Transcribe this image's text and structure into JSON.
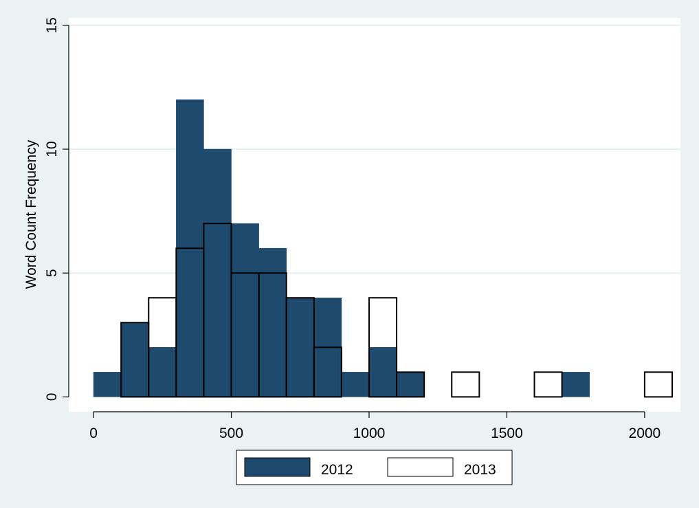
{
  "chart_data": {
    "type": "bar",
    "subtype": "overlaid-histogram",
    "title": "",
    "xlabel": "",
    "ylabel": "Word Count Frequency",
    "xlim": [
      -90,
      2130
    ],
    "ylim": [
      -0.6,
      15.3
    ],
    "bin_width": 100,
    "bin_starts": [
      0,
      100,
      200,
      300,
      400,
      500,
      600,
      700,
      800,
      900,
      1000,
      1100,
      1200,
      1300,
      1400,
      1500,
      1600,
      1700,
      1800,
      1900,
      2000
    ],
    "x_ticks": [
      0,
      500,
      1000,
      1500,
      2000
    ],
    "x_tick_labels": [
      "0",
      "500",
      "1000",
      "1500",
      "2000"
    ],
    "y_ticks": [
      0,
      5,
      10,
      15
    ],
    "y_tick_labels": [
      "0",
      "5",
      "10",
      "15"
    ],
    "grid": true,
    "legend": "bottom-center",
    "series": [
      {
        "name": "2012",
        "color": "#1e4a6e",
        "values": [
          1,
          3,
          2,
          12,
          10,
          7,
          6,
          4,
          4,
          1,
          2,
          1,
          0,
          0,
          0,
          0,
          0,
          1,
          0,
          0,
          0
        ]
      },
      {
        "name": "2013",
        "color": "#ffffff",
        "values": [
          0,
          3,
          4,
          6,
          7,
          5,
          5,
          4,
          2,
          0,
          4,
          1,
          0,
          1,
          0,
          0,
          1,
          0,
          0,
          0,
          1
        ]
      }
    ]
  }
}
